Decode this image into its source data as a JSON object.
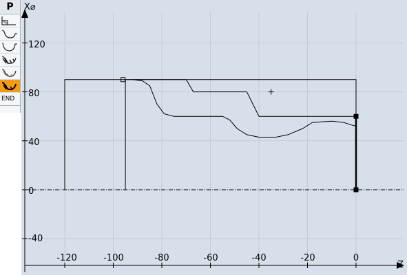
{
  "sidebar": {
    "header": "P",
    "steps": [
      {
        "icon": "stock-blank-icon",
        "active": false
      },
      {
        "icon": "contour-groove-icon",
        "active": false
      },
      {
        "icon": "contour-curve-icon",
        "active": false
      },
      {
        "icon": "stock-removal-icon",
        "active": false
      },
      {
        "icon": "residual-removal-icon",
        "active": false
      },
      {
        "icon": "finishing-icon",
        "active": true
      }
    ],
    "end_label": "END",
    "active_color": "#f39c12"
  },
  "axes": {
    "x_axis_label": "Z",
    "y_axis_label": "X⌀",
    "z_range": [
      -138,
      10
    ],
    "x_range": [
      -64,
      150
    ],
    "z_ticks": [
      "-120",
      "-100",
      "-80",
      "-60",
      "-40",
      "-20",
      "0"
    ],
    "x_ticks": [
      "120",
      "80",
      "40",
      "0",
      "-40"
    ],
    "grid": true
  },
  "drawing": {
    "blank_outline": [
      [
        -120,
        0
      ],
      [
        -120,
        90
      ],
      [
        0,
        90
      ],
      [
        0,
        0
      ]
    ],
    "start_line": [
      [
        -95,
        90
      ],
      [
        -95,
        0
      ]
    ],
    "upper_contour": [
      [
        -95,
        90
      ],
      [
        -70,
        90
      ],
      [
        -67,
        80
      ],
      [
        -45,
        80
      ],
      [
        -42,
        68
      ],
      [
        -40,
        60
      ],
      [
        0,
        60
      ]
    ],
    "lower_contour": [
      [
        -92,
        90
      ],
      [
        -88,
        89
      ],
      [
        -85,
        85
      ],
      [
        -82,
        70
      ],
      [
        -79,
        62
      ],
      [
        -75,
        60
      ],
      [
        -55,
        60
      ],
      [
        -52,
        57
      ],
      [
        -49,
        50
      ],
      [
        -45,
        45
      ],
      [
        -40,
        43
      ],
      [
        -33,
        43
      ],
      [
        -28,
        45
      ],
      [
        -22,
        50
      ],
      [
        -18,
        55
      ],
      [
        -10,
        56
      ],
      [
        -5,
        55
      ],
      [
        -2,
        53
      ],
      [
        0,
        52
      ]
    ],
    "cross_marker": [
      -35,
      80
    ],
    "square_markers": [
      [
        -96,
        90
      ],
      [
        0,
        60
      ],
      [
        0,
        0
      ]
    ],
    "colors": {
      "background": "#d7e0ea",
      "grid": "#c1ccd7",
      "line": "#000000",
      "axis": "#000000"
    }
  }
}
